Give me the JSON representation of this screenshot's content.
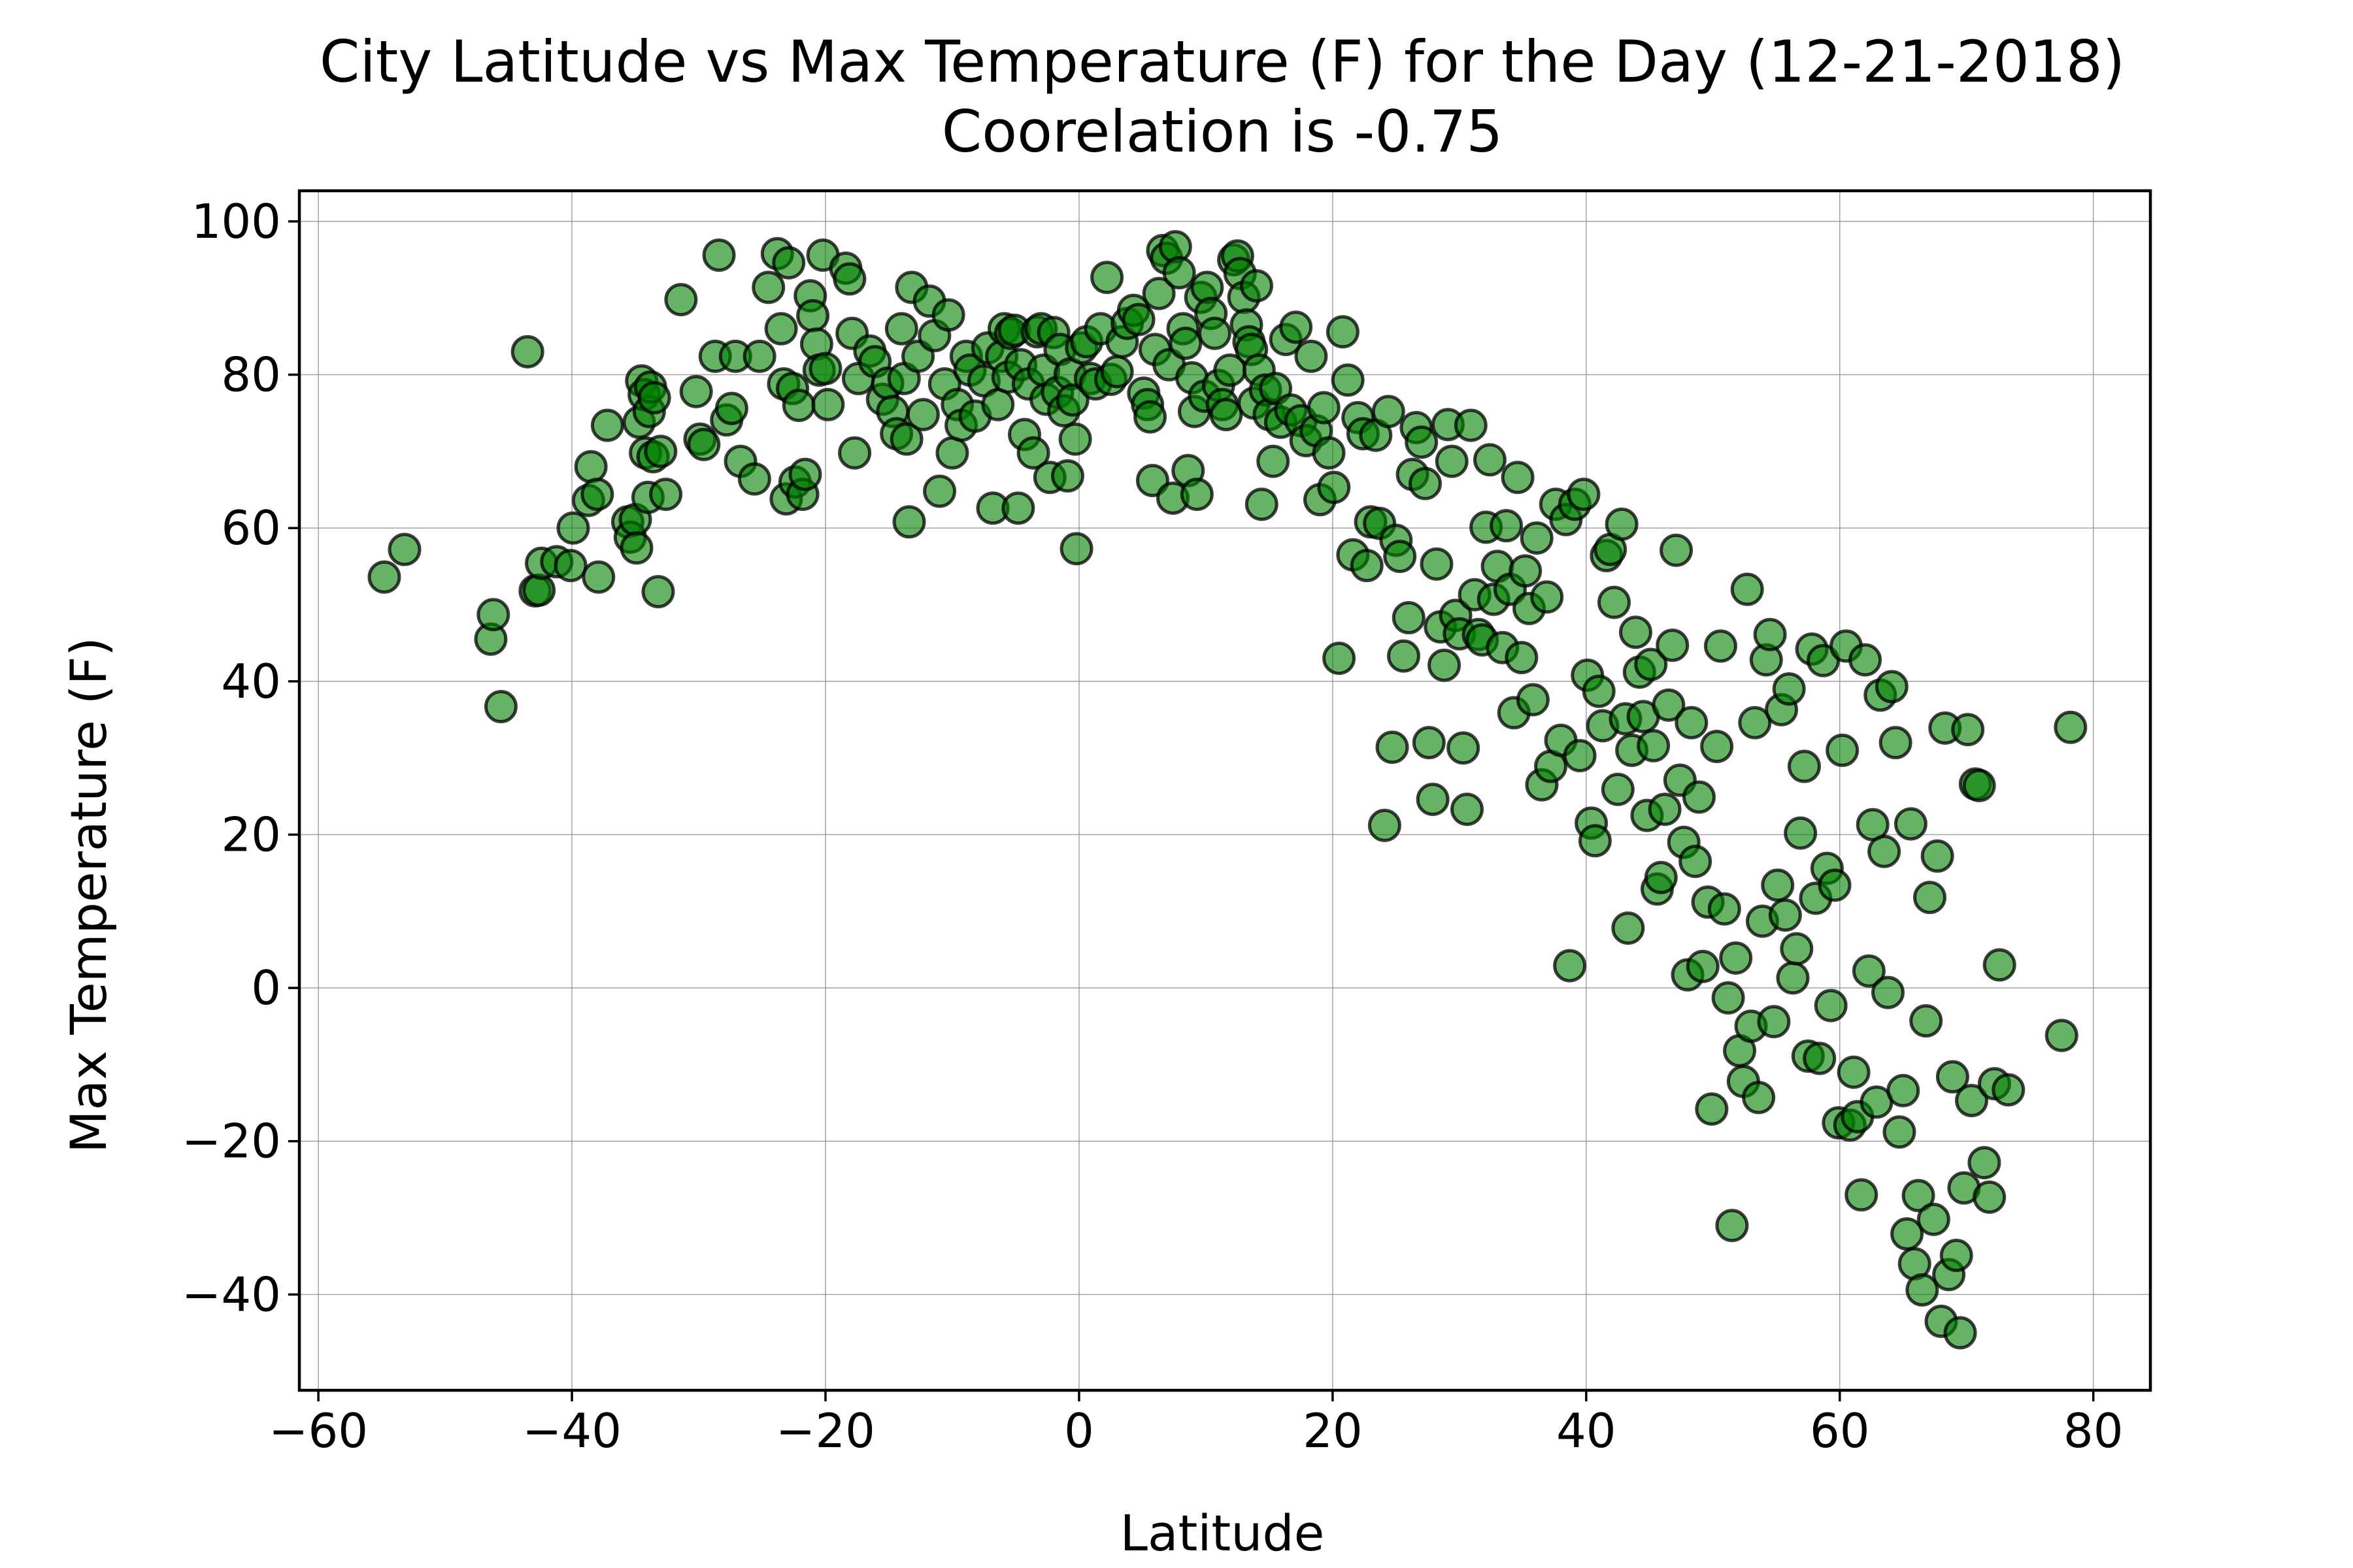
{
  "chart_data": {
    "type": "scatter",
    "title": "City Latitude vs Max Temperature (F) for the Day (12-21-2018)",
    "subtitle": "Coorelation is -0.75",
    "xlabel": "Latitude",
    "ylabel": "Max Temperature (F)",
    "xlim": [
      -61.5,
      84.5
    ],
    "ylim": [
      -52.5,
      104
    ],
    "xticks": [
      -60,
      -40,
      -20,
      0,
      20,
      40,
      60,
      80
    ],
    "yticks": [
      -40,
      -20,
      0,
      20,
      40,
      60,
      80,
      100
    ],
    "xtick_labels": [
      "−60",
      "−40",
      "−20",
      "0",
      "20",
      "40",
      "60",
      "80"
    ],
    "ytick_labels": [
      "−40",
      "−20",
      "0",
      "20",
      "40",
      "60",
      "80",
      "100"
    ],
    "grid": true,
    "colors": {
      "marker_fill": "#008000",
      "marker_edge": "#000000"
    },
    "points": [
      [
        -54.8,
        53.6
      ],
      [
        -53.2,
        57.2
      ],
      [
        -46.4,
        45.5
      ],
      [
        -46.2,
        48.7
      ],
      [
        -45.6,
        36.7
      ],
      [
        -43.5,
        83
      ],
      [
        -42.9,
        51.8
      ],
      [
        -42.6,
        51.9
      ],
      [
        -42.4,
        55.4
      ],
      [
        -41.2,
        55.6
      ],
      [
        -40.1,
        55.1
      ],
      [
        -39.9,
        60
      ],
      [
        -38.7,
        63.6
      ],
      [
        -38.5,
        68
      ],
      [
        -38,
        64.4
      ],
      [
        -37.9,
        53.6
      ],
      [
        -37.2,
        73.4
      ],
      [
        -35.6,
        60.8
      ],
      [
        -35.4,
        58.8
      ],
      [
        -35,
        61.1
      ],
      [
        -34.9,
        57.4
      ],
      [
        -34.7,
        73.8
      ],
      [
        -34.5,
        79.2
      ],
      [
        -34.3,
        77.4
      ],
      [
        -34.2,
        69.8
      ],
      [
        -34,
        64
      ],
      [
        -33.9,
        75.2
      ],
      [
        -33.8,
        78.4
      ],
      [
        -33.6,
        69.3
      ],
      [
        -33.5,
        77
      ],
      [
        -33.2,
        51.7
      ],
      [
        -33,
        70
      ],
      [
        -32.6,
        64.4
      ],
      [
        -31.4,
        89.8
      ],
      [
        -30.2,
        77.8
      ],
      [
        -29.9,
        71.6
      ],
      [
        -29.6,
        70.9
      ],
      [
        -28.7,
        82.4
      ],
      [
        -28.4,
        95.6
      ],
      [
        -27.8,
        74.1
      ],
      [
        -27.4,
        75.6
      ],
      [
        -27.1,
        82.4
      ],
      [
        -26.7,
        68.7
      ],
      [
        -25.6,
        66.4
      ],
      [
        -25.2,
        82.4
      ],
      [
        -24.5,
        91.4
      ],
      [
        -23.8,
        95.8
      ],
      [
        -23.5,
        86
      ],
      [
        -23.3,
        78.8
      ],
      [
        -23.1,
        63.8
      ],
      [
        -22.9,
        94.6
      ],
      [
        -22.6,
        78.2
      ],
      [
        -22.4,
        66
      ],
      [
        -22.1,
        76
      ],
      [
        -21.8,
        64.4
      ],
      [
        -21.6,
        67
      ],
      [
        -21.2,
        90.3
      ],
      [
        -21,
        87.7
      ],
      [
        -20.7,
        84
      ],
      [
        -20.5,
        80.6
      ],
      [
        -20.2,
        95.6
      ],
      [
        -20,
        80.8
      ],
      [
        -19.8,
        76.1
      ],
      [
        -18.4,
        93.9
      ],
      [
        -18.1,
        92.5
      ],
      [
        -17.9,
        85.4
      ],
      [
        -17.7,
        69.8
      ],
      [
        -17.4,
        79.5
      ],
      [
        -16.5,
        83.1
      ],
      [
        -16.1,
        81.7
      ],
      [
        -15.5,
        76.8
      ],
      [
        -15.1,
        78.9
      ],
      [
        -14.7,
        75.2
      ],
      [
        -14.4,
        72.3
      ],
      [
        -14,
        86
      ],
      [
        -13.8,
        79.5
      ],
      [
        -13.6,
        71.6
      ],
      [
        -13.4,
        60.8
      ],
      [
        -13.2,
        91.4
      ],
      [
        -12.7,
        82.4
      ],
      [
        -12.3,
        74.8
      ],
      [
        -11.8,
        89.6
      ],
      [
        -11.4,
        85.1
      ],
      [
        -11,
        64.8
      ],
      [
        -10.6,
        78.8
      ],
      [
        -10.3,
        87.8
      ],
      [
        -10,
        69.8
      ],
      [
        -9.6,
        76.1
      ],
      [
        -9.3,
        73.4
      ],
      [
        -8.9,
        82.4
      ],
      [
        -8.6,
        80.6
      ],
      [
        -8.2,
        74.6
      ],
      [
        -7.5,
        79.2
      ],
      [
        -7.2,
        83.5
      ],
      [
        -6.8,
        62.6
      ],
      [
        -6.4,
        76.1
      ],
      [
        -6.1,
        82.4
      ],
      [
        -5.9,
        86
      ],
      [
        -5.6,
        79.7
      ],
      [
        -5.4,
        85.4
      ],
      [
        -5.1,
        85.8
      ],
      [
        -4.8,
        62.6
      ],
      [
        -4.6,
        81.3
      ],
      [
        -4.3,
        72.2
      ],
      [
        -4,
        78.8
      ],
      [
        -3.6,
        69.8
      ],
      [
        -3.3,
        85.6
      ],
      [
        -3,
        86
      ],
      [
        -2.8,
        80.6
      ],
      [
        -2.6,
        76.8
      ],
      [
        -2.3,
        66.6
      ],
      [
        -2,
        85.5
      ],
      [
        -1.7,
        77.7
      ],
      [
        -1.5,
        83.3
      ],
      [
        -1.2,
        75.3
      ],
      [
        -0.9,
        66.8
      ],
      [
        -0.7,
        80.1
      ],
      [
        -0.5,
        76.7
      ],
      [
        -0.3,
        71.6
      ],
      [
        -0.2,
        57.3
      ],
      [
        0.2,
        83.5
      ],
      [
        0.6,
        84.3
      ],
      [
        0.9,
        79.5
      ],
      [
        1.3,
        78.8
      ],
      [
        1.7,
        86
      ],
      [
        2.2,
        92.7
      ],
      [
        2.5,
        79.4
      ],
      [
        3,
        80.4
      ],
      [
        3.4,
        84.3
      ],
      [
        3.8,
        86.7
      ],
      [
        4.3,
        88.4
      ],
      [
        4.7,
        87.2
      ],
      [
        5.1,
        77.6
      ],
      [
        5.4,
        76.1
      ],
      [
        5.6,
        74.5
      ],
      [
        5.8,
        66.2
      ],
      [
        6,
        83.3
      ],
      [
        6.3,
        90.6
      ],
      [
        6.6,
        96.2
      ],
      [
        6.9,
        95.2
      ],
      [
        7.1,
        81.3
      ],
      [
        7.4,
        63.9
      ],
      [
        7.6,
        96.7
      ],
      [
        7.9,
        93.3
      ],
      [
        8.2,
        86
      ],
      [
        8.4,
        84.1
      ],
      [
        8.6,
        67.5
      ],
      [
        8.9,
        79.6
      ],
      [
        9.1,
        75.2
      ],
      [
        9.3,
        64.4
      ],
      [
        9.6,
        90.1
      ],
      [
        9.9,
        77.2
      ],
      [
        10.1,
        91.4
      ],
      [
        10.4,
        88
      ],
      [
        10.7,
        85.4
      ],
      [
        11,
        78.6
      ],
      [
        11.3,
        76.1
      ],
      [
        11.6,
        74.8
      ],
      [
        11.9,
        80.6
      ],
      [
        12.2,
        95
      ],
      [
        12.5,
        95.5
      ],
      [
        12.7,
        93.2
      ],
      [
        13,
        90.1
      ],
      [
        13.2,
        86.5
      ],
      [
        13.4,
        84.3
      ],
      [
        13.6,
        83.3
      ],
      [
        13.8,
        76.3
      ],
      [
        14,
        91.6
      ],
      [
        14.2,
        80.6
      ],
      [
        14.4,
        63.1
      ],
      [
        14.7,
        78
      ],
      [
        15,
        74.8
      ],
      [
        15.3,
        68.7
      ],
      [
        15.5,
        78.2
      ],
      [
        15.9,
        73.8
      ],
      [
        16.3,
        84.6
      ],
      [
        16.7,
        75.4
      ],
      [
        17.1,
        86.2
      ],
      [
        17.5,
        74
      ],
      [
        17.9,
        71.4
      ],
      [
        18.3,
        82.4
      ],
      [
        18.7,
        72.7
      ],
      [
        19,
        63.7
      ],
      [
        19.3,
        75.7
      ],
      [
        19.7,
        69.8
      ],
      [
        20.1,
        65.3
      ],
      [
        20.5,
        43
      ],
      [
        20.8,
        85.6
      ],
      [
        21.2,
        79.3
      ],
      [
        21.6,
        56.5
      ],
      [
        22,
        74.4
      ],
      [
        22.4,
        72.3
      ],
      [
        22.7,
        55.1
      ],
      [
        23,
        60.8
      ],
      [
        23.4,
        72.1
      ],
      [
        23.7,
        60.6
      ],
      [
        24.1,
        21.2
      ],
      [
        24.4,
        75.2
      ],
      [
        24.7,
        31.4
      ],
      [
        25,
        58.4
      ],
      [
        25.3,
        56.3
      ],
      [
        25.6,
        43.3
      ],
      [
        26,
        48.3
      ],
      [
        26.3,
        67
      ],
      [
        26.6,
        73.1
      ],
      [
        27,
        71.2
      ],
      [
        27.3,
        65.8
      ],
      [
        27.6,
        32
      ],
      [
        27.9,
        24.6
      ],
      [
        28.2,
        55.3
      ],
      [
        28.5,
        47.1
      ],
      [
        28.8,
        42.1
      ],
      [
        29.1,
        73.5
      ],
      [
        29.4,
        68.7
      ],
      [
        29.7,
        48.6
      ],
      [
        30,
        46.2
      ],
      [
        30.3,
        31.3
      ],
      [
        30.6,
        23.3
      ],
      [
        30.9,
        73.4
      ],
      [
        31.2,
        51.3
      ],
      [
        31.5,
        46.1
      ],
      [
        31.8,
        45.4
      ],
      [
        32.1,
        60.1
      ],
      [
        32.4,
        68.9
      ],
      [
        32.7,
        50.7
      ],
      [
        33,
        55
      ],
      [
        33.4,
        44.4
      ],
      [
        33.7,
        60.3
      ],
      [
        34,
        52
      ],
      [
        34.3,
        35.9
      ],
      [
        34.6,
        66.6
      ],
      [
        34.9,
        43.1
      ],
      [
        35.2,
        54.4
      ],
      [
        35.5,
        49.5
      ],
      [
        35.8,
        37.6
      ],
      [
        36.1,
        58.7
      ],
      [
        36.5,
        26.5
      ],
      [
        36.9,
        51
      ],
      [
        37.2,
        28.9
      ],
      [
        37.6,
        63.1
      ],
      [
        38,
        32.3
      ],
      [
        38.4,
        61.1
      ],
      [
        38.7,
        2.9
      ],
      [
        39.1,
        63.1
      ],
      [
        39.5,
        30.3
      ],
      [
        39.8,
        64.4
      ],
      [
        40.1,
        40.8
      ],
      [
        40.4,
        21.5
      ],
      [
        40.7,
        19.2
      ],
      [
        41,
        38.7
      ],
      [
        41.3,
        34.2
      ],
      [
        41.6,
        56.4
      ],
      [
        41.9,
        57.2
      ],
      [
        42.2,
        50.3
      ],
      [
        42.5,
        25.9
      ],
      [
        42.8,
        60.5
      ],
      [
        43.1,
        35.1
      ],
      [
        43.3,
        7.8
      ],
      [
        43.6,
        31
      ],
      [
        43.9,
        46.4
      ],
      [
        44.2,
        41.2
      ],
      [
        44.5,
        35.4
      ],
      [
        44.8,
        22.5
      ],
      [
        45.1,
        42.2
      ],
      [
        45.3,
        31.6
      ],
      [
        45.6,
        12.9
      ],
      [
        45.9,
        14.4
      ],
      [
        46.2,
        23.3
      ],
      [
        46.5,
        36.9
      ],
      [
        46.8,
        44.7
      ],
      [
        47.1,
        57.1
      ],
      [
        47.4,
        27.1
      ],
      [
        47.7,
        19
      ],
      [
        48,
        1.7
      ],
      [
        48.3,
        34.6
      ],
      [
        48.6,
        16.5
      ],
      [
        48.9,
        24.9
      ],
      [
        49.2,
        2.8
      ],
      [
        49.6,
        11.2
      ],
      [
        49.9,
        -15.8
      ],
      [
        50.3,
        31.5
      ],
      [
        50.6,
        44.6
      ],
      [
        50.9,
        10.3
      ],
      [
        51.2,
        -1.3
      ],
      [
        51.5,
        -31
      ],
      [
        51.8,
        3.9
      ],
      [
        52.1,
        -8.2
      ],
      [
        52.4,
        -12.2
      ],
      [
        52.7,
        52
      ],
      [
        53,
        -5
      ],
      [
        53.3,
        34.6
      ],
      [
        53.6,
        -14.3
      ],
      [
        53.9,
        8.7
      ],
      [
        54.2,
        42.8
      ],
      [
        54.5,
        46.1
      ],
      [
        54.8,
        -4.4
      ],
      [
        55.1,
        13.4
      ],
      [
        55.4,
        36.3
      ],
      [
        55.7,
        9.5
      ],
      [
        56,
        39
      ],
      [
        56.3,
        1.3
      ],
      [
        56.6,
        5.1
      ],
      [
        56.9,
        20.2
      ],
      [
        57.2,
        28.9
      ],
      [
        57.5,
        -8.9
      ],
      [
        57.8,
        44.2
      ],
      [
        58.1,
        11.7
      ],
      [
        58.4,
        -9.2
      ],
      [
        58.7,
        42.7
      ],
      [
        59,
        15.6
      ],
      [
        59.3,
        -2.3
      ],
      [
        59.6,
        13.4
      ],
      [
        59.9,
        -17.6
      ],
      [
        60.2,
        31
      ],
      [
        60.5,
        44.6
      ],
      [
        60.8,
        -17.9
      ],
      [
        61.1,
        -11
      ],
      [
        61.4,
        -16.8
      ],
      [
        61.7,
        -27
      ],
      [
        62,
        42.8
      ],
      [
        62.3,
        2.2
      ],
      [
        62.6,
        21.3
      ],
      [
        62.9,
        -14.9
      ],
      [
        63.2,
        38.2
      ],
      [
        63.5,
        17.8
      ],
      [
        63.8,
        -0.6
      ],
      [
        64.1,
        39.3
      ],
      [
        64.4,
        32
      ],
      [
        64.7,
        -18.8
      ],
      [
        65,
        -13.4
      ],
      [
        65.3,
        -32.1
      ],
      [
        65.6,
        21.4
      ],
      [
        65.9,
        -36
      ],
      [
        66.2,
        -27.1
      ],
      [
        66.5,
        -39.4
      ],
      [
        66.8,
        -4.3
      ],
      [
        67.1,
        11.8
      ],
      [
        67.4,
        -30.2
      ],
      [
        67.7,
        17.2
      ],
      [
        68,
        -43.5
      ],
      [
        68.3,
        33.9
      ],
      [
        68.6,
        -37.4
      ],
      [
        68.9,
        -11.6
      ],
      [
        69.2,
        -34.9
      ],
      [
        69.5,
        -45
      ],
      [
        69.8,
        -26.1
      ],
      [
        70.1,
        33.7
      ],
      [
        70.4,
        -14.7
      ],
      [
        70.7,
        26.6
      ],
      [
        71,
        26.4
      ],
      [
        71.4,
        -22.8
      ],
      [
        71.8,
        -27.3
      ],
      [
        72.2,
        -12.5
      ],
      [
        72.6,
        3
      ],
      [
        73.3,
        -13.3
      ],
      [
        77.5,
        -6.2
      ],
      [
        78.2,
        34
      ]
    ]
  }
}
